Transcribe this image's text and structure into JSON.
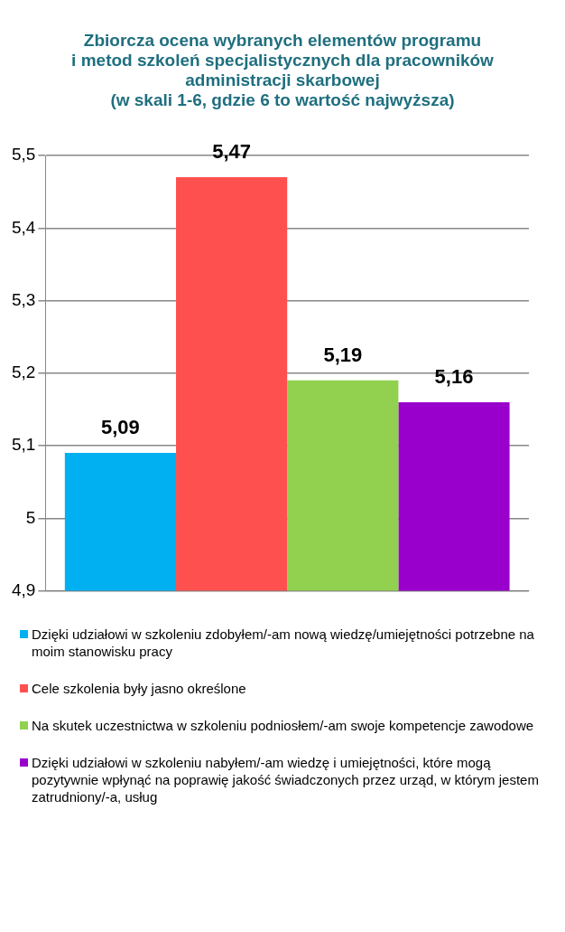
{
  "chart_data": {
    "type": "bar",
    "title": "Zbiorcza ocena wybranych elementów programu\ni metod szkoleń specjalistycznych dla pracowników\nadministracji skarbowej\n(w skali 1-6, gdzie 6 to wartość najwyższa)",
    "categories": [
      null
    ],
    "series": [
      {
        "name": "Dzięki udziałowi w szkoleniu zdobyłem/-am nową wiedzę/umiejętności potrzebne na moim stanowisku pracy",
        "color": "#00b0f0",
        "values": [
          5.09
        ],
        "value_labels": [
          "5,09"
        ]
      },
      {
        "name": "Cele szkolenia były jasno określone",
        "color": "#ff5050",
        "values": [
          5.47
        ],
        "value_labels": [
          "5,47"
        ]
      },
      {
        "name": "Na skutek uczestnictwa w szkoleniu podniosłem/-am swoje kompetencje zawodowe",
        "color": "#92d050",
        "values": [
          5.19
        ],
        "value_labels": [
          "5,19"
        ]
      },
      {
        "name": "Dzięki udziałowi w szkoleniu nabyłem/-am wiedzę i umiejętności, które mogą pozytywnie wpłynąć na poprawię jakość świadczonych przez urząd, w którym jestem zatrudniony/-a, usług",
        "color": "#9900cc",
        "values": [
          5.16
        ],
        "value_labels": [
          "5,16"
        ]
      }
    ],
    "ylim": [
      4.9,
      5.5
    ],
    "yticks": [
      {
        "value": 4.9,
        "label": "4,9"
      },
      5,
      {
        "value": 5.1,
        "label": "5,1"
      },
      {
        "value": 5.2,
        "label": "5,2"
      },
      {
        "value": 5.3,
        "label": "5,3"
      },
      {
        "value": 5.4,
        "label": "5,4"
      },
      {
        "value": 5.5,
        "label": "5,5"
      }
    ],
    "grid": "y",
    "legend": "bottom"
  }
}
